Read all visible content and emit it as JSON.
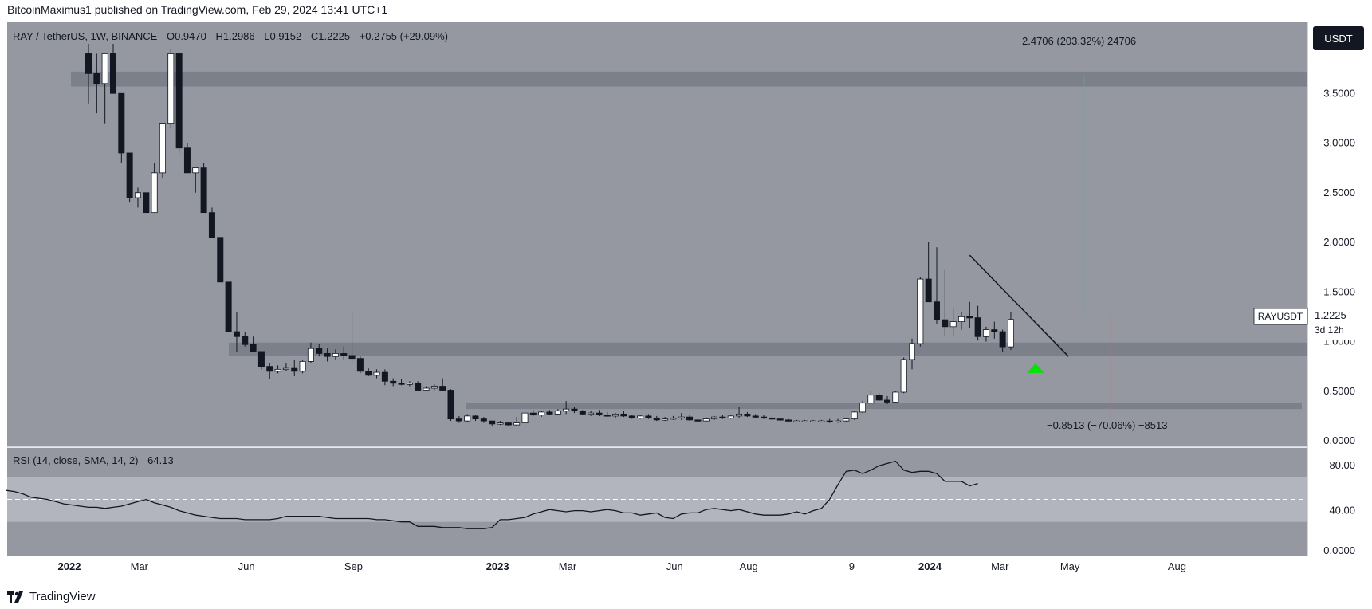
{
  "header": {
    "publisher_line": "BitcoinMaximus1 published on TradingView.com, Feb 29, 2024 13:41 UTC+1"
  },
  "footer": {
    "brand": "TradingView"
  },
  "legend": {
    "symbol": "RAY / TetherUS, 1W, BINANCE",
    "o_label": "O",
    "o_value": "0.9470",
    "h_label": "H",
    "h_value": "1.2986",
    "l_label": "L",
    "l_value": "0.9152",
    "c_label": "C",
    "c_value": "1.2225",
    "change": "+0.2755 (+29.09%)"
  },
  "currency_button": "USDT",
  "price_tag": {
    "symbol": "RAYUSDT",
    "value": "1.2225",
    "countdown": "3d 12h"
  },
  "annotations": {
    "measure_up": "2.4706 (203.32%) 24706",
    "measure_down": "−0.8513 (−70.06%) −8513"
  },
  "rsi_legend": {
    "label": "RSI (14, close, SMA, 14, 2)",
    "value": "64.13"
  },
  "colors": {
    "panel_bg": "#9598a1",
    "rsi_band": "#b2b5be",
    "zone": "#787b86",
    "bull_body": "#ffffff",
    "bear_body": "#131722",
    "wick": "#131722",
    "arrow": "#00e600",
    "axis_bg": "#ffffff"
  },
  "chart_data": [
    {
      "type": "candlestick",
      "title": "RAY / TetherUS, 1W, BINANCE",
      "ylim": [
        0,
        4.0
      ],
      "y_ticks": [
        "3.5000",
        "3.0000",
        "2.5000",
        "2.0000",
        "1.5000",
        "1.0000",
        "0.5000",
        "0.0000"
      ],
      "y_tick_values": [
        3.5,
        3.0,
        2.5,
        2.0,
        1.5,
        1.0,
        0.5,
        0.0
      ],
      "x_ticks": [
        "2022",
        "Mar",
        "Jun",
        "Sep",
        "2023",
        "Mar",
        "Jun",
        "Aug",
        "9",
        "2024",
        "Mar",
        "May",
        "Aug"
      ],
      "x_tick_weeks": [
        0,
        8.5,
        21.5,
        34.5,
        52,
        60.5,
        73.5,
        82.5,
        95,
        104.5,
        113,
        121.5,
        134.5
      ],
      "candles_ohlc": [
        [
          3.9,
          4.0,
          3.4,
          3.7
        ],
        [
          3.7,
          3.9,
          3.3,
          3.6
        ],
        [
          3.6,
          3.75,
          3.2,
          3.9
        ],
        [
          3.9,
          4.0,
          3.5,
          3.5
        ],
        [
          3.5,
          3.5,
          2.8,
          2.9
        ],
        [
          2.9,
          2.9,
          2.4,
          2.45
        ],
        [
          2.45,
          2.55,
          2.35,
          2.5
        ],
        [
          2.5,
          2.5,
          2.3,
          2.3
        ],
        [
          2.3,
          2.8,
          2.3,
          2.7
        ],
        [
          2.7,
          3.2,
          2.65,
          3.2
        ],
        [
          3.2,
          3.95,
          3.15,
          3.9
        ],
        [
          3.9,
          3.9,
          2.9,
          2.95
        ],
        [
          2.95,
          3.0,
          2.7,
          2.7
        ],
        [
          2.7,
          2.75,
          2.5,
          2.75
        ],
        [
          2.75,
          2.8,
          2.3,
          2.3
        ],
        [
          2.3,
          2.35,
          2.05,
          2.05
        ],
        [
          2.05,
          2.05,
          1.6,
          1.6
        ],
        [
          1.6,
          1.6,
          1.1,
          1.1
        ],
        [
          1.1,
          1.3,
          0.9,
          1.05
        ],
        [
          1.05,
          1.1,
          0.95,
          0.97
        ],
        [
          0.97,
          1.05,
          0.9,
          0.9
        ],
        [
          0.9,
          0.9,
          0.72,
          0.75
        ],
        [
          0.75,
          0.78,
          0.62,
          0.7
        ],
        [
          0.7,
          0.76,
          0.68,
          0.72
        ],
        [
          0.72,
          0.78,
          0.7,
          0.73
        ],
        [
          0.73,
          0.82,
          0.65,
          0.7
        ],
        [
          0.7,
          0.82,
          0.68,
          0.8
        ],
        [
          0.8,
          0.99,
          0.78,
          0.93
        ],
        [
          0.93,
          0.98,
          0.85,
          0.88
        ],
        [
          0.88,
          0.93,
          0.8,
          0.85
        ],
        [
          0.85,
          0.92,
          0.82,
          0.88
        ],
        [
          0.88,
          0.95,
          0.82,
          0.86
        ],
        [
          0.86,
          1.3,
          0.78,
          0.83
        ],
        [
          0.83,
          0.85,
          0.68,
          0.7
        ],
        [
          0.7,
          0.73,
          0.65,
          0.66
        ],
        [
          0.66,
          0.72,
          0.63,
          0.69
        ],
        [
          0.69,
          0.72,
          0.56,
          0.6
        ],
        [
          0.6,
          0.63,
          0.55,
          0.58
        ],
        [
          0.58,
          0.62,
          0.56,
          0.57
        ],
        [
          0.57,
          0.6,
          0.55,
          0.58
        ],
        [
          0.58,
          0.6,
          0.5,
          0.51
        ],
        [
          0.51,
          0.55,
          0.5,
          0.53
        ],
        [
          0.53,
          0.57,
          0.51,
          0.55
        ],
        [
          0.55,
          0.63,
          0.5,
          0.51
        ],
        [
          0.51,
          0.52,
          0.2,
          0.22
        ],
        [
          0.22,
          0.25,
          0.18,
          0.2
        ],
        [
          0.2,
          0.27,
          0.19,
          0.25
        ],
        [
          0.25,
          0.26,
          0.2,
          0.22
        ],
        [
          0.22,
          0.24,
          0.18,
          0.2
        ],
        [
          0.2,
          0.2,
          0.15,
          0.17
        ],
        [
          0.17,
          0.2,
          0.16,
          0.18
        ],
        [
          0.18,
          0.19,
          0.15,
          0.16
        ],
        [
          0.16,
          0.24,
          0.15,
          0.18
        ],
        [
          0.18,
          0.35,
          0.17,
          0.28
        ],
        [
          0.28,
          0.31,
          0.25,
          0.26
        ],
        [
          0.26,
          0.3,
          0.24,
          0.29
        ],
        [
          0.29,
          0.31,
          0.26,
          0.27
        ],
        [
          0.27,
          0.32,
          0.26,
          0.3
        ],
        [
          0.3,
          0.4,
          0.27,
          0.32
        ],
        [
          0.32,
          0.34,
          0.28,
          0.3
        ],
        [
          0.3,
          0.31,
          0.26,
          0.27
        ],
        [
          0.27,
          0.3,
          0.25,
          0.28
        ],
        [
          0.28,
          0.31,
          0.25,
          0.26
        ],
        [
          0.26,
          0.29,
          0.24,
          0.25
        ],
        [
          0.25,
          0.28,
          0.23,
          0.27
        ],
        [
          0.27,
          0.3,
          0.24,
          0.25
        ],
        [
          0.25,
          0.26,
          0.22,
          0.23
        ],
        [
          0.23,
          0.26,
          0.22,
          0.25
        ],
        [
          0.25,
          0.27,
          0.22,
          0.23
        ],
        [
          0.23,
          0.25,
          0.2,
          0.21
        ],
        [
          0.21,
          0.24,
          0.2,
          0.22
        ],
        [
          0.22,
          0.25,
          0.21,
          0.23
        ],
        [
          0.23,
          0.28,
          0.21,
          0.24
        ],
        [
          0.24,
          0.26,
          0.2,
          0.21
        ],
        [
          0.21,
          0.22,
          0.19,
          0.2
        ],
        [
          0.2,
          0.24,
          0.19,
          0.22
        ],
        [
          0.22,
          0.25,
          0.21,
          0.24
        ],
        [
          0.24,
          0.26,
          0.22,
          0.23
        ],
        [
          0.23,
          0.26,
          0.22,
          0.25
        ],
        [
          0.25,
          0.34,
          0.23,
          0.27
        ],
        [
          0.27,
          0.29,
          0.24,
          0.25
        ],
        [
          0.25,
          0.27,
          0.23,
          0.24
        ],
        [
          0.24,
          0.26,
          0.22,
          0.23
        ],
        [
          0.23,
          0.25,
          0.21,
          0.22
        ],
        [
          0.22,
          0.23,
          0.2,
          0.21
        ],
        [
          0.21,
          0.22,
          0.19,
          0.2
        ],
        [
          0.2,
          0.21,
          0.19,
          0.2
        ],
        [
          0.2,
          0.21,
          0.19,
          0.2
        ],
        [
          0.2,
          0.21,
          0.19,
          0.2
        ],
        [
          0.2,
          0.21,
          0.19,
          0.2
        ],
        [
          0.2,
          0.22,
          0.18,
          0.19
        ],
        [
          0.19,
          0.22,
          0.18,
          0.2
        ],
        [
          0.2,
          0.23,
          0.19,
          0.22
        ],
        [
          0.22,
          0.3,
          0.21,
          0.29
        ],
        [
          0.29,
          0.4,
          0.28,
          0.38
        ],
        [
          0.38,
          0.5,
          0.37,
          0.46
        ],
        [
          0.46,
          0.48,
          0.4,
          0.41
        ],
        [
          0.41,
          0.45,
          0.37,
          0.39
        ],
        [
          0.39,
          0.5,
          0.38,
          0.49
        ],
        [
          0.49,
          0.84,
          0.48,
          0.82
        ],
        [
          0.82,
          1.03,
          0.72,
          0.98
        ],
        [
          0.98,
          1.65,
          0.95,
          1.63
        ],
        [
          1.63,
          2.0,
          1.5,
          1.4
        ],
        [
          1.4,
          1.95,
          1.18,
          1.22
        ],
        [
          1.22,
          1.72,
          1.05,
          1.15
        ],
        [
          1.15,
          1.33,
          1.05,
          1.2
        ],
        [
          1.2,
          1.3,
          1.12,
          1.25
        ],
        [
          1.25,
          1.4,
          1.14,
          1.24
        ],
        [
          1.24,
          1.36,
          1.01,
          1.05
        ],
        [
          1.05,
          1.15,
          1.0,
          1.12
        ],
        [
          1.12,
          1.2,
          1.03,
          1.1
        ],
        [
          1.1,
          1.12,
          0.9,
          0.947
        ],
        [
          0.947,
          1.2986,
          0.9152,
          1.2225
        ]
      ],
      "resistance_zone": [
        3.57,
        3.72
      ],
      "support_zone": [
        0.86,
        0.99
      ],
      "lower_zone": [
        0.32,
        0.38
      ],
      "trendline": {
        "from": [
          107,
          1.87
        ],
        "to": [
          119,
          0.85
        ]
      },
      "current_price": 1.2225,
      "annotation_up": "2.4706 (203.32%) 24706",
      "annotation_down": "−0.8513 (−70.06%) −8513"
    },
    {
      "type": "line",
      "title": "RSI (14, close, SMA, 14, 2)",
      "ylim": [
        0,
        100
      ],
      "y_ticks": [
        "80.00",
        "40.00",
        "0.0000"
      ],
      "y_tick_values": [
        80,
        40,
        0
      ],
      "band": [
        30,
        70
      ],
      "midline": 50,
      "last_value": 64.13,
      "series": [
        {
          "values": [
            58,
            57,
            55,
            52,
            51,
            50,
            48,
            46,
            45,
            44,
            43,
            43,
            42,
            43,
            44,
            46,
            48,
            50,
            47,
            45,
            43,
            40,
            38,
            36,
            35,
            34,
            33,
            33,
            33,
            32,
            32,
            32,
            32,
            33,
            35,
            35,
            35,
            35,
            35,
            34,
            33,
            33,
            33,
            33,
            33,
            32,
            32,
            31,
            30,
            30,
            26,
            26,
            26,
            25,
            25,
            25,
            24,
            24,
            24,
            25,
            32,
            32,
            33,
            34,
            37,
            39,
            41,
            40,
            39,
            40,
            40,
            39,
            40,
            41,
            40,
            38,
            38,
            36,
            37,
            38,
            34,
            33,
            37,
            38,
            38,
            41,
            42,
            41,
            40,
            41,
            39,
            37,
            36,
            36,
            36,
            37,
            39,
            37,
            40,
            42,
            50,
            63,
            75,
            76,
            73,
            76,
            80,
            82,
            84,
            76,
            74,
            75,
            75,
            73,
            66,
            66,
            66,
            62,
            64.13
          ]
        }
      ]
    }
  ]
}
